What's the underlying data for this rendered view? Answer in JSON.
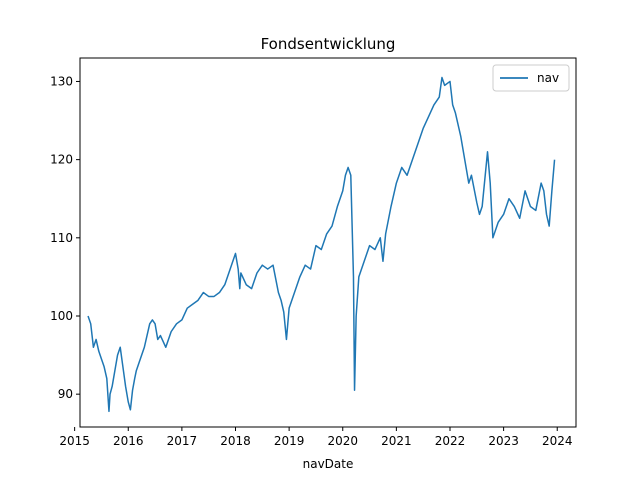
{
  "chart_data": {
    "type": "line",
    "title": "Fondsentwicklung",
    "xlabel": "navDate",
    "ylabel": "",
    "xlim": [
      2015.1,
      2024.35
    ],
    "ylim": [
      85.8,
      133.0
    ],
    "x_ticks": [
      2015,
      2016,
      2017,
      2018,
      2019,
      2020,
      2021,
      2022,
      2023,
      2024
    ],
    "x_tick_labels": [
      "2015",
      "2016",
      "2017",
      "2018",
      "2019",
      "2020",
      "2021",
      "2022",
      "2023",
      "2024"
    ],
    "y_ticks": [
      90,
      100,
      110,
      120,
      130
    ],
    "y_tick_labels": [
      "90",
      "100",
      "110",
      "120",
      "130"
    ],
    "grid": false,
    "legend_position": "top-right",
    "line_color": "#1f77b4",
    "series": [
      {
        "name": "nav",
        "x": [
          2015.25,
          2015.3,
          2015.35,
          2015.4,
          2015.45,
          2015.5,
          2015.55,
          2015.6,
          2015.64,
          2015.66,
          2015.7,
          2015.75,
          2015.8,
          2015.85,
          2015.9,
          2015.95,
          2016.0,
          2016.04,
          2016.08,
          2016.12,
          2016.15,
          2016.2,
          2016.3,
          2016.4,
          2016.45,
          2016.5,
          2016.55,
          2016.6,
          2016.7,
          2016.8,
          2016.9,
          2017.0,
          2017.1,
          2017.2,
          2017.3,
          2017.4,
          2017.5,
          2017.6,
          2017.7,
          2017.8,
          2017.9,
          2018.0,
          2018.05,
          2018.08,
          2018.1,
          2018.2,
          2018.3,
          2018.4,
          2018.5,
          2018.6,
          2018.7,
          2018.8,
          2018.85,
          2018.9,
          2018.95,
          2019.0,
          2019.1,
          2019.2,
          2019.3,
          2019.4,
          2019.5,
          2019.6,
          2019.7,
          2019.8,
          2019.9,
          2020.0,
          2020.05,
          2020.1,
          2020.15,
          2020.2,
          2020.22,
          2020.25,
          2020.3,
          2020.4,
          2020.5,
          2020.6,
          2020.7,
          2020.75,
          2020.8,
          2020.9,
          2021.0,
          2021.1,
          2021.2,
          2021.3,
          2021.4,
          2021.5,
          2021.6,
          2021.7,
          2021.8,
          2021.85,
          2021.9,
          2022.0,
          2022.05,
          2022.1,
          2022.2,
          2022.3,
          2022.35,
          2022.4,
          2022.5,
          2022.55,
          2022.6,
          2022.7,
          2022.75,
          2022.8,
          2022.9,
          2023.0,
          2023.1,
          2023.2,
          2023.3,
          2023.4,
          2023.5,
          2023.6,
          2023.7,
          2023.75,
          2023.8,
          2023.85,
          2023.9,
          2023.95
        ],
        "values": [
          100.0,
          99.0,
          96.0,
          97.0,
          95.5,
          94.5,
          93.5,
          92.0,
          87.8,
          90.0,
          91.0,
          93.0,
          95.0,
          96.0,
          93.5,
          91.0,
          89.0,
          88.0,
          90.5,
          92.0,
          93.0,
          94.0,
          96.0,
          99.0,
          99.5,
          99.0,
          97.0,
          97.5,
          96.0,
          98.0,
          99.0,
          99.5,
          101.0,
          101.5,
          102.0,
          103.0,
          102.5,
          102.5,
          103.0,
          104.0,
          106.0,
          108.0,
          106.0,
          103.5,
          105.5,
          104.0,
          103.5,
          105.5,
          106.5,
          106.0,
          106.5,
          103.0,
          102.0,
          100.5,
          97.0,
          101.0,
          103.0,
          105.0,
          106.5,
          106.0,
          109.0,
          108.5,
          110.5,
          111.5,
          114.0,
          116.0,
          118.0,
          119.0,
          118.0,
          105.0,
          90.5,
          100.0,
          105.0,
          107.0,
          109.0,
          108.5,
          110.0,
          107.0,
          110.5,
          114.0,
          117.0,
          119.0,
          118.0,
          120.0,
          122.0,
          124.0,
          125.5,
          127.0,
          128.0,
          130.5,
          129.5,
          130.0,
          127.0,
          126.0,
          123.0,
          119.0,
          117.0,
          118.0,
          114.5,
          113.0,
          114.0,
          121.0,
          117.0,
          110.0,
          112.0,
          113.0,
          115.0,
          114.0,
          112.5,
          116.0,
          114.0,
          113.5,
          117.0,
          116.0,
          113.0,
          111.5,
          116.0,
          120.0
        ]
      }
    ]
  }
}
